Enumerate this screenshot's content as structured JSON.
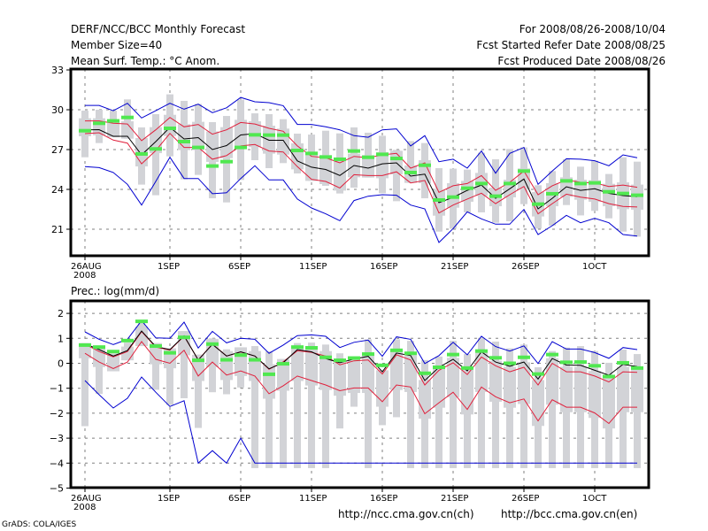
{
  "header": {
    "title": "DERF/NCC/BCC Monthly Forecast",
    "member_size": "Member Size=40",
    "variable": "Mean Surf. Temp.: °C Anom.",
    "period": "For 2008/08/26-2008/10/04",
    "start_date": "Fcst Started Refer Date 2008/08/25",
    "produced_date": "Fcst Produced Date 2008/08/26"
  },
  "footer": {
    "credit": "GrADS: COLA/IGES",
    "url_ch": "http://ncc.cma.gov.cn(ch)",
    "url_en": "http://bcc.cma.gov.cn(en)"
  },
  "colors": {
    "mean": "#000000",
    "spread": "#e0203c",
    "extreme": "#0000d0",
    "marker": "#50e850",
    "bar": "#d2d3d7"
  },
  "chart_data": [
    {
      "type": "line",
      "title": "Mean Surf. Temp.: °C Anom.",
      "xlabel": "",
      "ylabel": "",
      "ylim": [
        19.5,
        33
      ],
      "yticks": [
        21,
        24,
        27,
        30,
        33
      ],
      "x_start": "2008-08-26",
      "x_days": 40,
      "xticks": [
        {
          "day": 0,
          "label": "26AUG",
          "sub": "2008"
        },
        {
          "day": 6,
          "label": "1SEP"
        },
        {
          "day": 11,
          "label": "6SEP"
        },
        {
          "day": 16,
          "label": "11SEP"
        },
        {
          "day": 21,
          "label": "16SEP"
        },
        {
          "day": 26,
          "label": "21SEP"
        },
        {
          "day": 31,
          "label": "26SEP"
        },
        {
          "day": 36,
          "label": "1OCT"
        }
      ],
      "grid": true,
      "series": [
        {
          "name": "ensemble-mean",
          "color_key": "mean",
          "values": [
            28.49,
            28.5,
            28.0,
            28.0,
            26.6,
            27.6,
            28.67,
            27.8,
            27.9,
            27.0,
            27.3,
            28.1,
            28.2,
            27.7,
            27.7,
            26.15,
            25.67,
            25.5,
            25.05,
            25.8,
            25.6,
            25.93,
            26.0,
            25.0,
            25.15,
            23.0,
            23.4,
            23.93,
            24.33,
            23.33,
            24.05,
            24.78,
            22.53,
            23.33,
            24.2,
            23.93,
            24.05,
            23.7,
            23.53,
            23.45
          ]
        },
        {
          "name": "spread-upper",
          "color_key": "spread",
          "values": [
            29.16,
            29.16,
            28.98,
            28.93,
            27.67,
            28.49,
            29.42,
            28.71,
            28.89,
            28.16,
            28.49,
            29.04,
            28.93,
            28.6,
            28.38,
            27.27,
            26.49,
            26.38,
            26.0,
            26.49,
            26.38,
            26.6,
            26.71,
            25.6,
            26.0,
            23.78,
            24.27,
            24.44,
            25.04,
            23.93,
            24.53,
            25.38,
            23.6,
            24.27,
            24.71,
            24.53,
            24.49,
            24.22,
            24.33,
            24.16
          ]
        },
        {
          "name": "spread-lower",
          "color_key": "spread",
          "values": [
            28.2,
            28.27,
            27.71,
            27.49,
            25.93,
            26.93,
            28.22,
            27.16,
            27.16,
            26.27,
            26.55,
            27.27,
            27.38,
            26.89,
            26.82,
            25.71,
            24.76,
            24.6,
            24.11,
            25.11,
            25.04,
            25.04,
            25.33,
            24.49,
            24.67,
            22.22,
            22.82,
            23.27,
            23.71,
            22.93,
            23.6,
            24.22,
            22.16,
            22.93,
            23.64,
            23.42,
            23.27,
            22.93,
            22.71,
            22.67
          ]
        },
        {
          "name": "max",
          "color_key": "extreme",
          "values": [
            30.33,
            30.33,
            29.93,
            30.49,
            29.38,
            29.93,
            30.49,
            30.04,
            30.42,
            29.78,
            30.15,
            30.93,
            30.6,
            30.53,
            30.31,
            28.89,
            28.89,
            28.71,
            28.49,
            28.05,
            27.93,
            28.49,
            28.56,
            27.27,
            28.05,
            26.09,
            26.27,
            25.6,
            26.89,
            25.22,
            26.71,
            27.16,
            24.38,
            25.38,
            26.31,
            26.27,
            26.16,
            25.78,
            26.6,
            26.38
          ]
        },
        {
          "name": "min",
          "color_key": "extreme",
          "values": [
            25.71,
            25.64,
            25.27,
            24.38,
            22.82,
            24.6,
            26.42,
            24.82,
            24.82,
            23.67,
            23.75,
            24.82,
            25.78,
            24.71,
            24.71,
            23.27,
            22.6,
            22.16,
            21.64,
            23.16,
            23.49,
            23.6,
            23.56,
            22.82,
            22.53,
            20.0,
            21.05,
            22.31,
            21.78,
            21.38,
            21.38,
            22.49,
            20.6,
            21.27,
            22.05,
            21.49,
            21.82,
            21.49,
            20.6,
            20.49
          ]
        },
        {
          "name": "marker",
          "color_key": "marker",
          "values": [
            28.42,
            28.98,
            29.16,
            29.42,
            26.67,
            27.05,
            28.6,
            27.6,
            27.16,
            25.76,
            26.09,
            27.16,
            28.11,
            28.09,
            28.09,
            26.93,
            26.71,
            26.44,
            26.27,
            26.89,
            26.42,
            26.64,
            26.33,
            25.27,
            25.82,
            23.2,
            23.42,
            24.09,
            24.44,
            23.49,
            24.44,
            25.38,
            22.89,
            23.67,
            24.64,
            24.44,
            24.49,
            23.82,
            23.69,
            23.56
          ]
        }
      ],
      "bars": {
        "max": [
          29.93,
          30.0,
          29.93,
          30.78,
          28.67,
          29.67,
          31.16,
          30.67,
          30.44,
          29.07,
          29.53,
          30.76,
          29.73,
          29.67,
          29.29,
          28.2,
          28.13,
          28.42,
          28.22,
          28.67,
          28.27,
          28.04,
          26.98,
          27.64,
          27.49,
          25.6,
          25.56,
          25.49,
          26.76,
          26.27,
          27.04,
          27.16,
          24.31,
          25.38,
          26.27,
          25.71,
          26.16,
          25.16,
          26.42,
          26.09
        ],
        "min": [
          26.42,
          27.49,
          27.93,
          27.82,
          24.36,
          23.56,
          26.49,
          24.76,
          25.09,
          23.33,
          23.02,
          24.71,
          26.2,
          25.6,
          25.98,
          25.2,
          24.64,
          24.27,
          23.69,
          24.13,
          24.89,
          23.71,
          23.11,
          24.49,
          23.33,
          20.82,
          21.04,
          22.27,
          22.27,
          21.49,
          21.6,
          22.89,
          21.04,
          21.27,
          22.82,
          22.04,
          22.38,
          21.82,
          20.82,
          20.44
        ]
      }
    },
    {
      "type": "line",
      "title": "Prec.: log(mm/d)",
      "xlabel": "",
      "ylabel": "",
      "ylim": [
        -5,
        2.5
      ],
      "yticks": [
        -5,
        -4,
        -3,
        -2,
        -1,
        0,
        1,
        2
      ],
      "x_start": "2008-08-26",
      "x_days": 40,
      "xticks": [
        {
          "day": 0,
          "label": "26AUG",
          "sub": "2008"
        },
        {
          "day": 6,
          "label": "1SEP"
        },
        {
          "day": 11,
          "label": "6SEP"
        },
        {
          "day": 16,
          "label": "11SEP"
        },
        {
          "day": 21,
          "label": "16SEP"
        },
        {
          "day": 26,
          "label": "21SEP"
        },
        {
          "day": 31,
          "label": "26SEP"
        },
        {
          "day": 36,
          "label": "1OCT"
        }
      ],
      "grid": true,
      "series": [
        {
          "name": "ensemble-mean",
          "color_key": "mean",
          "values": [
            0.78,
            0.55,
            0.29,
            0.51,
            1.29,
            0.67,
            0.55,
            1.1,
            0.13,
            0.76,
            0.29,
            0.46,
            0.29,
            -0.22,
            0.02,
            0.55,
            0.46,
            0.19,
            0.02,
            0.17,
            0.28,
            -0.34,
            0.41,
            0.31,
            -0.69,
            -0.16,
            0.16,
            -0.3,
            0.46,
            0.05,
            -0.12,
            0.05,
            -0.63,
            0.19,
            -0.07,
            -0.08,
            -0.28,
            -0.48,
            -0.04,
            -0.13
          ]
        },
        {
          "name": "spread-upper",
          "color_key": "spread",
          "values": [
            0.77,
            0.47,
            0.26,
            0.47,
            1.27,
            0.65,
            0.53,
            1.09,
            0.14,
            0.77,
            0.29,
            0.45,
            0.29,
            -0.24,
            0.06,
            0.5,
            0.44,
            0.29,
            -0.06,
            0.1,
            0.13,
            -0.43,
            0.34,
            0.13,
            -0.87,
            -0.28,
            0.02,
            -0.45,
            0.25,
            -0.1,
            -0.34,
            -0.16,
            -0.87,
            0.0,
            -0.34,
            -0.34,
            -0.51,
            -0.75,
            -0.34,
            -0.36
          ]
        },
        {
          "name": "spread-lower",
          "color_key": "spread",
          "values": [
            0.4,
            0.05,
            -0.21,
            0.05,
            0.87,
            0.16,
            0.0,
            0.52,
            -0.51,
            0.05,
            -0.47,
            -0.31,
            -0.51,
            -1.22,
            -0.9,
            -0.51,
            -0.69,
            -0.87,
            -1.1,
            -0.99,
            -0.99,
            -1.54,
            -0.87,
            -0.95,
            -2.02,
            -1.58,
            -1.16,
            -1.85,
            -0.95,
            -1.34,
            -1.58,
            -1.43,
            -2.31,
            -1.46,
            -1.76,
            -1.76,
            -1.99,
            -2.41,
            -1.76,
            -1.76
          ]
        },
        {
          "name": "max",
          "color_key": "extreme",
          "values": [
            1.26,
            0.96,
            0.75,
            0.96,
            1.71,
            1.02,
            1.0,
            1.65,
            0.61,
            1.28,
            0.82,
            1.0,
            0.96,
            0.4,
            0.73,
            1.11,
            1.14,
            1.08,
            0.63,
            0.84,
            0.93,
            0.28,
            1.06,
            0.96,
            -0.01,
            0.31,
            0.84,
            0.34,
            1.08,
            0.67,
            0.49,
            0.7,
            -0.01,
            0.87,
            0.57,
            0.57,
            0.43,
            0.2,
            0.63,
            0.55
          ]
        },
        {
          "name": "min",
          "color_key": "extreme",
          "values": [
            -0.69,
            -1.26,
            -1.79,
            -1.4,
            -0.55,
            -1.16,
            -1.73,
            -1.5,
            -4.0,
            -3.5,
            -4.0,
            -3.0,
            -4.0,
            -4.0,
            -4.0,
            -4.0,
            -4.0,
            -4.0,
            -4.0,
            -4.0,
            -4.0,
            -4.0,
            -4.0,
            -4.0,
            -4.0,
            -4.0,
            -4.0,
            -4.0,
            -4.0,
            -4.0,
            -4.0,
            -4.0,
            -4.0,
            -4.0,
            -4.0,
            -4.0,
            -4.0,
            -4.0,
            -4.0,
            -4.0
          ]
        },
        {
          "name": "marker",
          "color_key": "marker",
          "values": [
            0.73,
            0.65,
            0.47,
            0.91,
            1.68,
            0.69,
            0.42,
            1.04,
            0.12,
            0.77,
            0.14,
            0.33,
            0.14,
            -0.44,
            -0.02,
            0.65,
            0.62,
            0.24,
            0.12,
            0.21,
            0.37,
            -0.08,
            0.52,
            0.4,
            -0.4,
            -0.16,
            0.35,
            -0.19,
            0.49,
            0.22,
            0.0,
            0.24,
            -0.43,
            0.35,
            0.04,
            0.05,
            -0.1,
            -0.53,
            0.02,
            -0.19
          ]
        }
      ],
      "bars": {
        "max": [
          0.81,
          0.69,
          0.39,
          0.83,
          1.66,
          0.81,
          0.6,
          1.29,
          0.35,
          1.0,
          0.56,
          0.64,
          0.69,
          0.48,
          0.17,
          0.81,
          0.83,
          0.75,
          0.4,
          0.25,
          0.96,
          -0.28,
          0.96,
          0.9,
          0.13,
          0.27,
          0.9,
          0.37,
          1.02,
          0.87,
          0.6,
          0.75,
          -0.16,
          0.49,
          0.63,
          0.69,
          0.49,
          0.02,
          0.55,
          0.37
        ],
        "min": [
          -2.52,
          -1.23,
          -0.32,
          0.12,
          0.69,
          -1.06,
          -1.67,
          -1.4,
          -2.59,
          -1.16,
          -1.24,
          -0.97,
          -4.2,
          -4.2,
          -4.2,
          -4.2,
          -4.2,
          -4.2,
          -2.61,
          -1.74,
          -4.2,
          -2.48,
          -2.16,
          -4.2,
          -4.2,
          -4.2,
          -4.2,
          -4.2,
          -4.2,
          -4.2,
          -4.2,
          -4.2,
          -4.2,
          -4.2,
          -4.2,
          -4.2,
          -4.2,
          -4.2,
          -4.2,
          -4.2
        ]
      }
    }
  ]
}
